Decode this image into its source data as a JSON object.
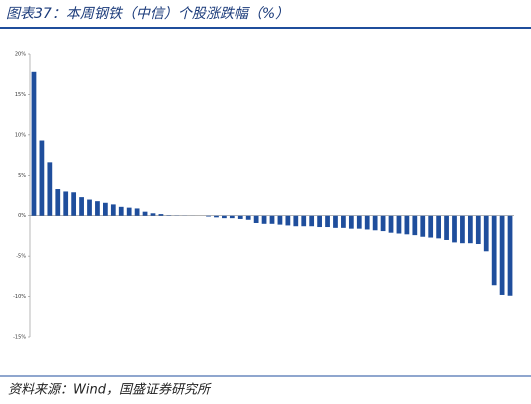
{
  "chart_data": {
    "type": "bar",
    "title": "图表37：本周钢铁（中信）个股涨跌幅（%）",
    "source": "资料来源：Wind，国盛证券研究所",
    "color": "#1f4e9c",
    "categories": [
      null,
      null,
      null,
      null,
      null,
      null,
      null,
      null,
      null,
      null,
      null,
      null,
      null,
      null,
      null,
      null,
      null,
      null,
      null,
      null,
      null,
      null,
      null,
      null,
      null,
      null,
      null,
      null,
      null,
      null,
      null,
      null,
      null,
      null,
      null,
      null,
      null,
      null,
      null,
      null,
      null,
      null,
      null,
      null,
      null,
      null,
      null,
      null,
      null,
      null,
      null,
      null,
      null,
      null,
      null,
      null,
      null,
      null,
      null,
      null,
      null
    ],
    "values": [
      17.8,
      9.3,
      6.6,
      3.3,
      3.0,
      2.9,
      2.3,
      2.0,
      1.8,
      1.6,
      1.4,
      1.1,
      1.0,
      0.9,
      0.5,
      0.3,
      0.2,
      0.05,
      0.03,
      0.02,
      0.01,
      0,
      -0.1,
      -0.2,
      -0.3,
      -0.3,
      -0.4,
      -0.5,
      -0.9,
      -1.0,
      -1.0,
      -1.1,
      -1.2,
      -1.3,
      -1.3,
      -1.3,
      -1.4,
      -1.4,
      -1.5,
      -1.5,
      -1.6,
      -1.6,
      -1.7,
      -1.8,
      -1.9,
      -2.1,
      -2.2,
      -2.3,
      -2.4,
      -2.6,
      -2.7,
      -2.8,
      -3.0,
      -3.3,
      -3.4,
      -3.4,
      -3.5,
      -4.4,
      -8.6,
      -9.8,
      -9.9
    ],
    "ylim": [
      -15,
      20
    ],
    "yticks": [
      {
        "value": -15,
        "label": "-15%"
      },
      {
        "value": -10,
        "label": "-10%"
      },
      {
        "value": -5,
        "label": "-5%"
      },
      {
        "value": 0,
        "label": "0%"
      },
      {
        "value": 5,
        "label": "5%"
      },
      {
        "value": 10,
        "label": "10%"
      },
      {
        "value": 15,
        "label": "15%"
      },
      {
        "value": 20,
        "label": "20%"
      }
    ]
  }
}
